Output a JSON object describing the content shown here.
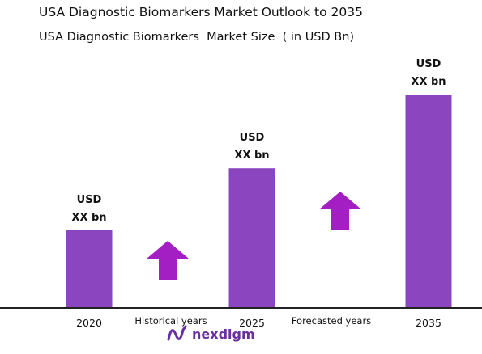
{
  "title": "USA Diagnostic Biomarkers Market Outlook to 2035",
  "subtitle": "USA Diagnostic Biomarkers  Market Size  ( in USD Bn)",
  "colors": {
    "bar": "#8a45bf",
    "arrow": "#a31fc4",
    "axis": "#222222",
    "logo": "#6a2fa0"
  },
  "chart_data": {
    "type": "bar",
    "categories": [
      "2020",
      "2025",
      "2035"
    ],
    "values": [
      1.0,
      1.8,
      2.75
    ],
    "value_labels": [
      [
        "USD",
        "XX bn"
      ],
      [
        "USD",
        "XX bn"
      ],
      [
        "USD",
        "XX bn"
      ]
    ],
    "value_unit_note": "values are relative (actual figures shown as XX bn)",
    "period_labels": [
      "Historical years",
      "Forecasted years"
    ],
    "ylim": [
      0,
      2.75
    ],
    "grid": false,
    "legend": "none"
  },
  "logo": {
    "text": "nexdigm",
    "icon": "nexdigm-wave-icon"
  }
}
